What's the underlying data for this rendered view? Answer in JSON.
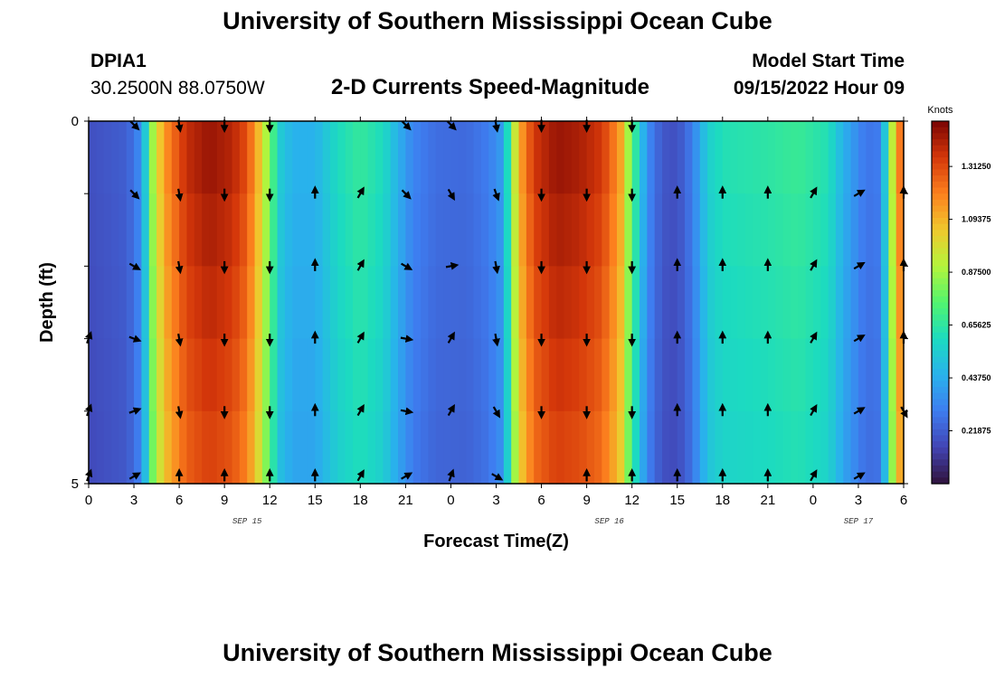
{
  "header": {
    "title": "University of Southern Mississippi Ocean Cube",
    "station_id": "DPIA1",
    "coords": "30.2500N  88.0750W",
    "subtitle": "2-D Currents Speed-Magnitude",
    "model_label": "Model Start Time",
    "model_time": "09/15/2022 Hour 09"
  },
  "footer": {
    "title": "University of Southern Mississippi Ocean Cube"
  },
  "chart_data": {
    "type": "heatmap",
    "title": "2-D Currents Speed-Magnitude",
    "xlabel": "Forecast Time(Z)",
    "ylabel": "Depth (ft)",
    "x_range_hours": [
      0,
      54
    ],
    "x_tick_hours": [
      0,
      3,
      6,
      9,
      12,
      15,
      18,
      21,
      24,
      27,
      30,
      33,
      36,
      39,
      42,
      45,
      48,
      51,
      54
    ],
    "x_tick_labels": [
      "0",
      "3",
      "6",
      "9",
      "12",
      "15",
      "18",
      "21",
      "0",
      "3",
      "6",
      "9",
      "12",
      "15",
      "18",
      "21",
      "0",
      "3",
      "6"
    ],
    "date_labels": [
      {
        "hour": 10.5,
        "text": "SEP 15"
      },
      {
        "hour": 34.5,
        "text": "SEP 16"
      },
      {
        "hour": 51,
        "text": "SEP 17"
      }
    ],
    "y_range": [
      0,
      5
    ],
    "y_tick_values": [
      0,
      1,
      2,
      3,
      4,
      5
    ],
    "y_tick_labels": [
      "0",
      "",
      "",
      "",
      "",
      "5"
    ],
    "colorbar": {
      "title": "Knots",
      "range": [
        0,
        1.5
      ],
      "tick_values": [
        0.21875,
        0.4375,
        0.65625,
        0.875,
        1.09375,
        1.3125
      ],
      "tick_labels": [
        "0.21875",
        "0.43750",
        "0.65625",
        "0.87500",
        "1.09375",
        "1.31250"
      ]
    },
    "speed_profile_knots": [
      [
        0.0,
        0.18
      ],
      [
        2.5,
        0.22
      ],
      [
        3.2,
        0.3
      ],
      [
        3.8,
        0.55
      ],
      [
        4.2,
        0.85
      ],
      [
        5.0,
        1.15
      ],
      [
        6.5,
        1.38
      ],
      [
        8.0,
        1.45
      ],
      [
        9.5,
        1.4
      ],
      [
        10.5,
        1.3
      ],
      [
        11.2,
        1.1
      ],
      [
        12.0,
        0.8
      ],
      [
        12.6,
        0.55
      ],
      [
        13.5,
        0.45
      ],
      [
        15.0,
        0.45
      ],
      [
        16.5,
        0.6
      ],
      [
        18.0,
        0.67
      ],
      [
        19.5,
        0.6
      ],
      [
        20.5,
        0.45
      ],
      [
        21.5,
        0.32
      ],
      [
        23.0,
        0.26
      ],
      [
        25.0,
        0.25
      ],
      [
        26.5,
        0.3
      ],
      [
        27.5,
        0.4
      ],
      [
        28.0,
        0.8
      ],
      [
        28.5,
        1.1
      ],
      [
        29.5,
        1.35
      ],
      [
        31.0,
        1.45
      ],
      [
        32.5,
        1.42
      ],
      [
        34.0,
        1.35
      ],
      [
        35.2,
        1.15
      ],
      [
        36.0,
        0.75
      ],
      [
        37.0,
        0.35
      ],
      [
        38.0,
        0.2
      ],
      [
        39.0,
        0.18
      ],
      [
        40.0,
        0.3
      ],
      [
        41.0,
        0.55
      ],
      [
        42.0,
        0.62
      ],
      [
        45.0,
        0.65
      ],
      [
        47.0,
        0.68
      ],
      [
        49.0,
        0.62
      ],
      [
        50.0,
        0.45
      ],
      [
        51.5,
        0.28
      ],
      [
        52.5,
        0.3
      ],
      [
        53.2,
        0.9
      ],
      [
        54.0,
        1.35
      ]
    ],
    "depth_speed_factors": [
      1.0,
      0.98,
      0.96,
      0.94,
      0.92
    ],
    "vectors": [
      {
        "depth": 0.05,
        "hours": [
          3,
          6,
          9,
          12,
          21,
          24,
          27,
          30,
          33,
          36
        ],
        "angles": [
          135,
          170,
          180,
          180,
          135,
          135,
          170,
          180,
          180,
          180
        ]
      },
      {
        "depth": 1.0,
        "hours": [
          3,
          6,
          9,
          12,
          15,
          18,
          21,
          24,
          27,
          30,
          33,
          36,
          39,
          42,
          45,
          48,
          51,
          54
        ],
        "angles": [
          135,
          170,
          180,
          180,
          0,
          30,
          135,
          150,
          160,
          180,
          180,
          180,
          0,
          0,
          0,
          30,
          60,
          0
        ]
      },
      {
        "depth": 2.0,
        "hours": [
          3,
          6,
          9,
          12,
          15,
          18,
          21,
          24,
          27,
          30,
          33,
          36,
          39,
          42,
          45,
          48,
          51,
          54
        ],
        "angles": [
          120,
          170,
          180,
          180,
          0,
          30,
          120,
          80,
          170,
          180,
          180,
          180,
          0,
          0,
          0,
          30,
          60,
          0
        ]
      },
      {
        "depth": 3.0,
        "hours": [
          0,
          3,
          6,
          9,
          12,
          15,
          18,
          21,
          24,
          27,
          30,
          33,
          36,
          39,
          42,
          45,
          48,
          51,
          54
        ],
        "angles": [
          20,
          110,
          170,
          180,
          180,
          0,
          30,
          100,
          30,
          170,
          180,
          180,
          180,
          0,
          0,
          0,
          30,
          60,
          0
        ]
      },
      {
        "depth": 4.0,
        "hours": [
          0,
          3,
          6,
          9,
          12,
          15,
          18,
          21,
          24,
          27,
          30,
          33,
          36,
          39,
          42,
          45,
          48,
          51,
          54
        ],
        "angles": [
          20,
          70,
          170,
          180,
          180,
          0,
          30,
          100,
          30,
          150,
          180,
          180,
          180,
          0,
          0,
          0,
          30,
          60,
          150
        ]
      },
      {
        "depth": 4.9,
        "hours": [
          0,
          3,
          6,
          9,
          12,
          15,
          18,
          21,
          24,
          27,
          33,
          36,
          39,
          42,
          45,
          48,
          51
        ],
        "angles": [
          20,
          60,
          0,
          0,
          0,
          0,
          30,
          60,
          20,
          120,
          0,
          0,
          0,
          0,
          0,
          30,
          60
        ]
      }
    ]
  }
}
